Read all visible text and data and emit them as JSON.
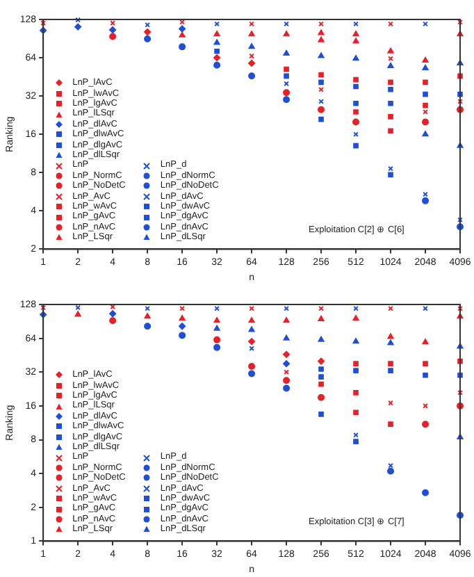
{
  "chart_data": [
    {
      "type": "scatter",
      "xlabel": "n",
      "ylabel": "Ranking",
      "log": "xy",
      "legend": "bottom left",
      "grid": false,
      "x": [
        1,
        2,
        4,
        8,
        16,
        32,
        64,
        128,
        256,
        512,
        1024,
        2048,
        4096
      ],
      "xlim": [
        1,
        4096
      ],
      "xticks": [
        1,
        2,
        4,
        8,
        16,
        32,
        64,
        128,
        256,
        512,
        1024,
        2048,
        4096
      ],
      "ylim": [
        2,
        128
      ],
      "yticks": [
        2,
        4,
        8,
        16,
        32,
        64,
        128
      ],
      "annotations": [
        "Exploitation C[2] ⊕ C[6]"
      ],
      "series": [
        {
          "name": "LnP_lAvC",
          "color": "#e8202a",
          "marker": "diamond",
          "values": [
            null,
            null,
            null,
            102,
            null,
            64,
            58,
            null,
            null,
            null,
            null,
            null,
            null
          ]
        },
        {
          "name": "LnP_lwAvC",
          "color": "#e8202a",
          "marker": "square",
          "values": [
            null,
            null,
            null,
            null,
            null,
            null,
            null,
            52,
            47,
            43,
            null,
            null,
            null
          ]
        },
        {
          "name": "LnP_lgAvC",
          "color": "#e8202a",
          "marker": "square",
          "values": [
            null,
            null,
            null,
            null,
            null,
            null,
            null,
            null,
            null,
            null,
            41,
            41,
            46
          ]
        },
        {
          "name": "LnP_lLSqr",
          "color": "#e8202a",
          "marker": "triangle",
          "values": [
            null,
            null,
            null,
            null,
            96,
            98,
            98,
            98,
            100,
            98,
            72,
            61,
            98
          ]
        },
        {
          "name": "LnP_dlAvC",
          "color": "#1f4fd6",
          "marker": "diamond",
          "values": [
            105,
            112,
            106,
            null,
            108,
            null,
            null,
            null,
            null,
            null,
            null,
            null,
            null
          ]
        },
        {
          "name": "LnP_dlwAvC",
          "color": "#1f4fd6",
          "marker": "square",
          "values": [
            null,
            null,
            null,
            null,
            null,
            72,
            null,
            46,
            41,
            null,
            null,
            null,
            null
          ]
        },
        {
          "name": "LnP_dlgAvC",
          "color": "#1f4fd6",
          "marker": "square",
          "values": [
            null,
            null,
            null,
            null,
            null,
            null,
            null,
            null,
            null,
            38,
            36,
            33,
            33
          ]
        },
        {
          "name": "LnP_dlLSqr",
          "color": "#1f4fd6",
          "marker": "triangle",
          "values": [
            null,
            null,
            null,
            null,
            null,
            84,
            78,
            69,
            66,
            63,
            55,
            53,
            58
          ]
        },
        {
          "name": "LnP",
          "color": "#e8202a",
          "marker": "cross",
          "values": [
            120,
            null,
            120,
            null,
            122,
            null,
            118,
            null,
            118,
            null,
            118,
            null,
            122
          ]
        },
        {
          "name": "LnP_NormC",
          "color": "#e8202a",
          "marker": "circle",
          "values": [
            null,
            null,
            94,
            null,
            null,
            null,
            null,
            34,
            null,
            null,
            null,
            null,
            null
          ]
        },
        {
          "name": "LnP_NoDetC",
          "color": "#e8202a",
          "marker": "circle",
          "values": [
            null,
            null,
            null,
            null,
            null,
            null,
            null,
            null,
            25,
            20,
            null,
            null,
            null
          ]
        },
        {
          "name": "LnP_AvC",
          "color": "#e8202a",
          "marker": "cross",
          "values": [
            null,
            null,
            null,
            null,
            null,
            null,
            66,
            null,
            36,
            null,
            63,
            24,
            29
          ]
        },
        {
          "name": "LnP_wAvC",
          "color": "#e8202a",
          "marker": "square",
          "values": [
            null,
            null,
            null,
            null,
            null,
            null,
            null,
            null,
            null,
            24,
            22,
            27,
            null
          ]
        },
        {
          "name": "LnP_gAvC",
          "color": "#e8202a",
          "marker": "square",
          "values": [
            null,
            null,
            null,
            null,
            null,
            null,
            null,
            null,
            null,
            null,
            17,
            null,
            null
          ]
        },
        {
          "name": "LnP_nAvC",
          "color": "#e8202a",
          "marker": "circle",
          "values": [
            null,
            null,
            null,
            null,
            null,
            null,
            null,
            null,
            null,
            null,
            null,
            20,
            25
          ]
        },
        {
          "name": "LnP_LSqr",
          "color": "#e8202a",
          "marker": "triangle",
          "values": [
            null,
            null,
            null,
            null,
            null,
            null,
            null,
            null,
            88,
            86,
            null,
            null,
            null
          ]
        },
        {
          "name": "LnP_d",
          "color": "#1f4fd6",
          "marker": "cross",
          "values": [
            null,
            127,
            null,
            116,
            null,
            118,
            null,
            118,
            null,
            118,
            null,
            118,
            null
          ]
        },
        {
          "name": "LnP_dNormC",
          "color": "#1f4fd6",
          "marker": "circle",
          "values": [
            null,
            null,
            null,
            90,
            78,
            56,
            null,
            null,
            null,
            null,
            null,
            null,
            null
          ]
        },
        {
          "name": "LnP_dNoDetC",
          "color": "#1f4fd6",
          "marker": "circle",
          "values": [
            null,
            null,
            null,
            null,
            null,
            null,
            46,
            30,
            null,
            null,
            null,
            null,
            null
          ]
        },
        {
          "name": "LnP_dAvC",
          "color": "#1f4fd6",
          "marker": "cross",
          "values": [
            null,
            null,
            null,
            null,
            null,
            null,
            null,
            40,
            29,
            16,
            8.6,
            5.4,
            3.4
          ]
        },
        {
          "name": "LnP_dwAvC",
          "color": "#1f4fd6",
          "marker": "square",
          "values": [
            null,
            null,
            null,
            null,
            null,
            null,
            null,
            null,
            null,
            28,
            28,
            null,
            null
          ]
        },
        {
          "name": "LnP_dgAvC",
          "color": "#1f4fd6",
          "marker": "square",
          "values": [
            null,
            null,
            null,
            null,
            null,
            null,
            null,
            null,
            21,
            13,
            7.7,
            null,
            null
          ]
        },
        {
          "name": "LnP_dnAvC",
          "color": "#1f4fd6",
          "marker": "circle",
          "values": [
            null,
            null,
            null,
            null,
            null,
            null,
            null,
            null,
            null,
            null,
            null,
            4.8,
            3
          ]
        },
        {
          "name": "LnP_dLSqr",
          "color": "#1f4fd6",
          "marker": "triangle",
          "values": [
            null,
            null,
            null,
            null,
            null,
            null,
            null,
            null,
            null,
            null,
            null,
            16,
            13
          ]
        }
      ]
    },
    {
      "type": "scatter",
      "xlabel": "n",
      "ylabel": "Ranking",
      "log": "xy",
      "legend": "bottom left",
      "grid": false,
      "x": [
        1,
        2,
        4,
        8,
        16,
        32,
        64,
        128,
        256,
        512,
        1024,
        2048,
        4096
      ],
      "xlim": [
        1,
        4096
      ],
      "xticks": [
        1,
        2,
        4,
        8,
        16,
        32,
        64,
        128,
        256,
        512,
        1024,
        2048,
        4096
      ],
      "ylim": [
        1,
        128
      ],
      "yticks": [
        1,
        2,
        4,
        8,
        16,
        32,
        64,
        128
      ],
      "annotations": [
        "Exploitation C[3] ⊕ C[7]"
      ],
      "series": [
        {
          "name": "LnP_lAvC",
          "color": "#e8202a",
          "marker": "diamond",
          "values": [
            null,
            null,
            null,
            null,
            null,
            null,
            60,
            46,
            40,
            null,
            null,
            null,
            null
          ]
        },
        {
          "name": "LnP_lwAvC",
          "color": "#e8202a",
          "marker": "square",
          "values": [
            null,
            null,
            null,
            null,
            null,
            null,
            null,
            null,
            null,
            38,
            38,
            null,
            null
          ]
        },
        {
          "name": "LnP_lgAvC",
          "color": "#e8202a",
          "marker": "square",
          "values": [
            null,
            null,
            null,
            null,
            null,
            null,
            null,
            null,
            null,
            null,
            null,
            38,
            40
          ]
        },
        {
          "name": "LnP_lLSqr",
          "color": "#e8202a",
          "marker": "triangle",
          "values": [
            null,
            null,
            null,
            100,
            96,
            92,
            92,
            92,
            95,
            96,
            66,
            59,
            100
          ]
        },
        {
          "name": "LnP_dlAvC",
          "color": "#1f4fd6",
          "marker": "diamond",
          "values": [
            104,
            null,
            106,
            null,
            82,
            null,
            null,
            38,
            null,
            null,
            null,
            null,
            null
          ]
        },
        {
          "name": "LnP_dlwAvC",
          "color": "#1f4fd6",
          "marker": "square",
          "values": [
            null,
            null,
            null,
            null,
            null,
            null,
            null,
            null,
            34,
            33,
            null,
            null,
            null
          ]
        },
        {
          "name": "LnP_dlgAvC",
          "color": "#1f4fd6",
          "marker": "square",
          "values": [
            null,
            null,
            null,
            null,
            null,
            null,
            null,
            null,
            null,
            null,
            33,
            30,
            30
          ]
        },
        {
          "name": "LnP_dlLSqr",
          "color": "#1f4fd6",
          "marker": "triangle",
          "values": [
            null,
            null,
            null,
            null,
            null,
            78,
            76,
            64,
            62,
            60,
            58,
            null,
            54
          ]
        },
        {
          "name": "LnP",
          "color": "#e8202a",
          "marker": "cross",
          "values": [
            120,
            null,
            122,
            null,
            118,
            null,
            118,
            null,
            118,
            null,
            118,
            null,
            118
          ]
        },
        {
          "name": "LnP_NormC",
          "color": "#e8202a",
          "marker": "circle",
          "values": [
            null,
            null,
            92,
            null,
            null,
            62,
            36,
            null,
            null,
            null,
            null,
            null,
            null
          ]
        },
        {
          "name": "LnP_NoDetC",
          "color": "#e8202a",
          "marker": "circle",
          "values": [
            null,
            null,
            null,
            null,
            null,
            null,
            null,
            27,
            19,
            null,
            null,
            null,
            null
          ]
        },
        {
          "name": "LnP_AvC",
          "color": "#e8202a",
          "marker": "cross",
          "values": [
            null,
            null,
            null,
            null,
            null,
            null,
            null,
            32,
            null,
            null,
            17,
            16,
            21
          ]
        },
        {
          "name": "LnP_wAvC",
          "color": "#e8202a",
          "marker": "square",
          "values": [
            null,
            null,
            null,
            null,
            null,
            null,
            null,
            null,
            25,
            21,
            null,
            null,
            null
          ]
        },
        {
          "name": "LnP_gAvC",
          "color": "#e8202a",
          "marker": "square",
          "values": [
            null,
            null,
            null,
            null,
            null,
            null,
            null,
            null,
            null,
            14,
            11,
            null,
            null
          ]
        },
        {
          "name": "LnP_nAvC",
          "color": "#e8202a",
          "marker": "circle",
          "values": [
            null,
            null,
            null,
            null,
            null,
            null,
            null,
            null,
            null,
            null,
            null,
            11,
            16
          ]
        },
        {
          "name": "LnP_LSqr",
          "color": "#e8202a",
          "marker": "triangle",
          "values": [
            null,
            104,
            null,
            null,
            null,
            null,
            null,
            null,
            null,
            null,
            null,
            null,
            null
          ]
        },
        {
          "name": "LnP_d",
          "color": "#1f4fd6",
          "marker": "cross",
          "values": [
            null,
            120,
            null,
            118,
            null,
            118,
            null,
            118,
            null,
            118,
            null,
            118,
            null
          ]
        },
        {
          "name": "LnP_dNormC",
          "color": "#1f4fd6",
          "marker": "circle",
          "values": [
            null,
            null,
            null,
            82,
            68,
            53,
            null,
            null,
            null,
            null,
            null,
            null,
            null
          ]
        },
        {
          "name": "LnP_dNoDetC",
          "color": "#1f4fd6",
          "marker": "circle",
          "values": [
            null,
            null,
            null,
            null,
            null,
            null,
            31,
            23,
            null,
            null,
            null,
            null,
            null
          ]
        },
        {
          "name": "LnP_dAvC",
          "color": "#1f4fd6",
          "marker": "cross",
          "values": [
            null,
            null,
            null,
            null,
            null,
            null,
            52,
            null,
            null,
            8.8,
            4.7,
            null,
            null
          ]
        },
        {
          "name": "LnP_dwAvC",
          "color": "#1f4fd6",
          "marker": "square",
          "values": [
            null,
            null,
            null,
            null,
            null,
            null,
            null,
            null,
            29,
            null,
            null,
            null,
            null
          ]
        },
        {
          "name": "LnP_dgAvC",
          "color": "#1f4fd6",
          "marker": "square",
          "values": [
            null,
            null,
            null,
            null,
            null,
            null,
            null,
            null,
            13.5,
            7.7,
            null,
            null,
            null
          ]
        },
        {
          "name": "LnP_dnAvC",
          "color": "#1f4fd6",
          "marker": "circle",
          "values": [
            null,
            null,
            null,
            null,
            null,
            null,
            null,
            null,
            null,
            null,
            4.2,
            2.7,
            1.7
          ]
        },
        {
          "name": "LnP_dLSqr",
          "color": "#1f4fd6",
          "marker": "triangle",
          "values": [
            null,
            null,
            null,
            null,
            null,
            null,
            null,
            null,
            null,
            null,
            null,
            null,
            8.4
          ]
        }
      ]
    }
  ]
}
